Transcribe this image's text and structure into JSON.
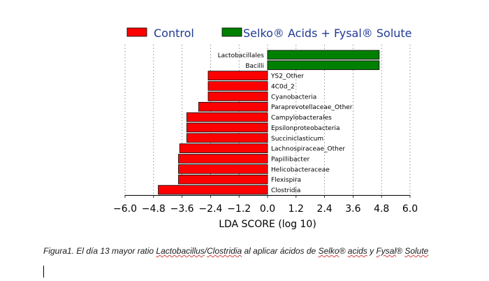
{
  "chart_data": {
    "type": "bar",
    "orientation": "horizontal",
    "xlabel": "LDA SCORE (log 10)",
    "xlim": [
      -6.0,
      6.0
    ],
    "xticks": [
      "−6.0",
      "−4.8",
      "−3.6",
      "−2.4",
      "−1.2",
      "0.0",
      "1.2",
      "2.4",
      "3.6",
      "4.8",
      "6.0"
    ],
    "xtick_values": [
      -6.0,
      -4.8,
      -3.6,
      -2.4,
      -1.2,
      0.0,
      1.2,
      2.4,
      3.6,
      4.8,
      6.0
    ],
    "grid": "vertical dotted",
    "legend_position": "top",
    "series": [
      {
        "name": "Control",
        "color": "#ff0000"
      },
      {
        "name": "Selko® Acids + Fysal® Solute",
        "color": "#008000"
      }
    ],
    "bars": [
      {
        "label": "Lactobacillales",
        "value": 4.7,
        "series": 1
      },
      {
        "label": "Bacilli",
        "value": 4.7,
        "series": 1
      },
      {
        "label": "YS2_Other",
        "value": -2.5,
        "series": 0
      },
      {
        "label": "4C0d_2",
        "value": -2.5,
        "series": 0
      },
      {
        "label": "Cyanobacteria",
        "value": -2.5,
        "series": 0
      },
      {
        "label": "Paraprevotellaceae_Other",
        "value": -2.9,
        "series": 0
      },
      {
        "label": "Campylobacterales",
        "value": -3.4,
        "series": 0
      },
      {
        "label": "Epsilonproteobacteria",
        "value": -3.4,
        "series": 0
      },
      {
        "label": "Succiniclasticum",
        "value": -3.4,
        "series": 0
      },
      {
        "label": "Lachnospiraceae_Other",
        "value": -3.7,
        "series": 0
      },
      {
        "label": "Papillibacter",
        "value": -3.75,
        "series": 0
      },
      {
        "label": "Helicobacteraceae",
        "value": -3.75,
        "series": 0
      },
      {
        "label": "Flexispira",
        "value": -3.75,
        "series": 0
      },
      {
        "label": "Clostridia",
        "value": -4.6,
        "series": 0
      }
    ]
  },
  "caption": {
    "p1": "Figura1. El día 13 mayor ratio ",
    "s1": "Lactobacillus",
    "p2": "/",
    "s2": "Clostridia",
    "p3": " al aplicar ácidos de ",
    "s3": "Selko",
    "p4": "® ",
    "s4": "acids",
    "p5": " y ",
    "s5": "Fysal",
    "p6": "® ",
    "s6": "Solute"
  }
}
